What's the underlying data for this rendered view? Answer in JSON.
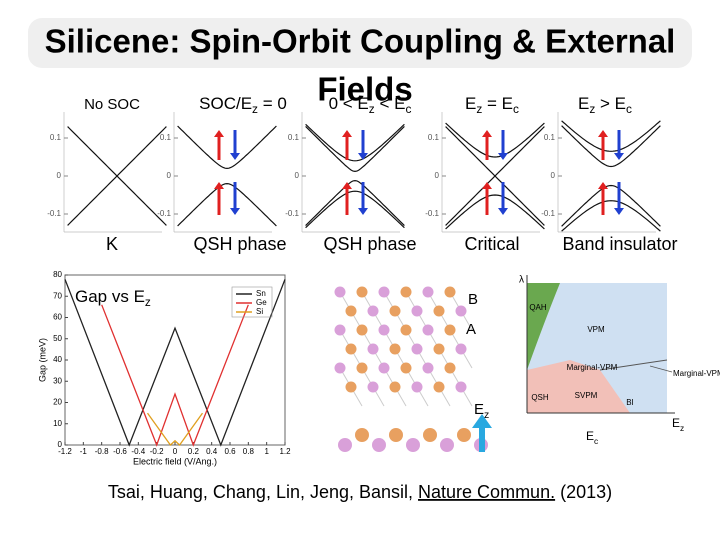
{
  "title": [
    "Silicene: Spin-Orbit Coupling & External",
    "Fields"
  ],
  "panels": [
    {
      "label": [
        "No SOC"
      ],
      "caption": "K"
    },
    {
      "label": [
        "SOC/E",
        "z",
        " = 0"
      ],
      "caption": "QSH phase"
    },
    {
      "label": [
        "0 < E",
        "z",
        " < E",
        "c"
      ],
      "caption": "QSH phase"
    },
    {
      "label": [
        "E",
        "z",
        " = E",
        "c"
      ],
      "caption": "Critical"
    },
    {
      "label": [
        "E",
        "z",
        " > E",
        "c"
      ],
      "caption": "Band insulator"
    }
  ],
  "band_ticks": [
    0.1,
    0,
    -0.1
  ],
  "gap_chart": {
    "type": "line",
    "title": [
      "Gap vs E",
      "z"
    ],
    "y_label": "Gap (meV)",
    "x_label": "Electric field (V/Ang.)",
    "xlim": [
      -1.2,
      1.2
    ],
    "xticks": [
      -1.2,
      -1,
      -0.8,
      -0.6,
      -0.4,
      -0.2,
      0,
      0.2,
      0.4,
      0.6,
      0.8,
      1,
      1.2
    ],
    "ylim": [
      0,
      80
    ],
    "yticks": [
      0,
      10,
      20,
      30,
      40,
      50,
      60,
      70,
      80
    ],
    "series": [
      {
        "name": "Sn",
        "color": "#222222",
        "x": [
          -1.2,
          -0.5,
          0,
          0.5,
          1.2
        ],
        "values": [
          78,
          0,
          55,
          0,
          78
        ]
      },
      {
        "name": "Ge",
        "color": "#e03030",
        "x": [
          -0.8,
          -0.2,
          0,
          0.2,
          0.8
        ],
        "values": [
          66,
          0,
          24,
          0,
          66
        ]
      },
      {
        "name": "Si",
        "color": "#e0a020",
        "x": [
          -0.3,
          -0.05,
          0,
          0.05,
          0.3
        ],
        "values": [
          15,
          0,
          2,
          0,
          15
        ]
      }
    ]
  },
  "lattice": {
    "labels": [
      "B",
      "A"
    ],
    "field": [
      "E",
      "z"
    ]
  },
  "phase_diagram": {
    "axis_top": "λ",
    "regions": [
      "QAH",
      "VPM",
      "Marginal-VPM",
      "QSH",
      "SVPM",
      "BI"
    ],
    "side_label": "Marginal-VPM",
    "x_marker": [
      "E",
      "c"
    ],
    "x_axis": [
      "E",
      "z"
    ]
  },
  "citation": {
    "authors": "Tsai, Huang, Chang, Lin, Jeng, Bansil, ",
    "journal": "Nature Commun.",
    "year": " (2013)"
  }
}
